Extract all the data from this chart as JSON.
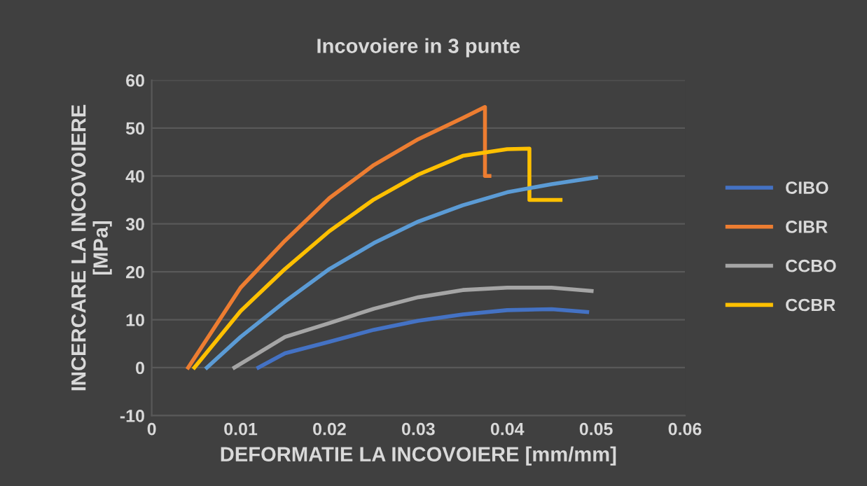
{
  "chart_data": {
    "type": "line",
    "title": "Incovoiere in 3 punte",
    "xlabel": "DEFORMATIE LA INCOVOIERE [mm/mm]",
    "ylabel": "INCERCARE LA INCOVOIERE\n[MPa]",
    "xlim": [
      0,
      0.06
    ],
    "xticks": [
      0,
      0.01,
      0.02,
      0.03,
      0.04,
      0.05,
      0.06
    ],
    "ylim": [
      -10,
      60
    ],
    "yticks": [
      -10,
      0,
      10,
      20,
      30,
      40,
      50,
      60
    ],
    "grid": "y",
    "legend": "right",
    "marker": "none",
    "line_style": "solid",
    "series": [
      {
        "name": "CIBO",
        "color": "#4472c4",
        "x": [
          0.012,
          0.015,
          0.02,
          0.025,
          0.03,
          0.035,
          0.04,
          0.045,
          0.049
        ],
        "values": [
          0,
          3,
          5.4,
          7.9,
          9.8,
          11.1,
          12,
          12.2,
          11.6
        ]
      },
      {
        "name": "CIBR",
        "color": "#ed7d31",
        "x": [
          0.0041,
          0.01,
          0.015,
          0.02,
          0.025,
          0.03,
          0.035,
          0.0375,
          0.0375,
          0.038
        ],
        "values": [
          0,
          16.7,
          26.5,
          35.4,
          42.3,
          47.7,
          52.1,
          54.4,
          40,
          40
        ]
      },
      {
        "name": "CCBO",
        "color": "#a5a5a5",
        "x": [
          0.0093,
          0.015,
          0.02,
          0.025,
          0.03,
          0.035,
          0.04,
          0.045,
          0.0495
        ],
        "values": [
          0,
          6.4,
          9.3,
          12.3,
          14.7,
          16.2,
          16.7,
          16.7,
          16
        ]
      },
      {
        "name": "CCBR",
        "color": "#ffc000",
        "x": [
          0.0048,
          0.01,
          0.015,
          0.02,
          0.025,
          0.03,
          0.035,
          0.04,
          0.0425,
          0.0425,
          0.046
        ],
        "values": [
          0,
          11.8,
          20.6,
          28.5,
          35.1,
          40.3,
          44.2,
          45.6,
          45.7,
          35,
          35
        ]
      },
      {
        "color": "#5b9bd5",
        "x": [
          0.0062,
          0.01,
          0.015,
          0.02,
          0.025,
          0.03,
          0.035,
          0.04,
          0.045,
          0.05
        ],
        "values": [
          0,
          6.4,
          13.8,
          20.6,
          26,
          30.5,
          33.9,
          36.6,
          38.3,
          39.7
        ]
      }
    ]
  }
}
